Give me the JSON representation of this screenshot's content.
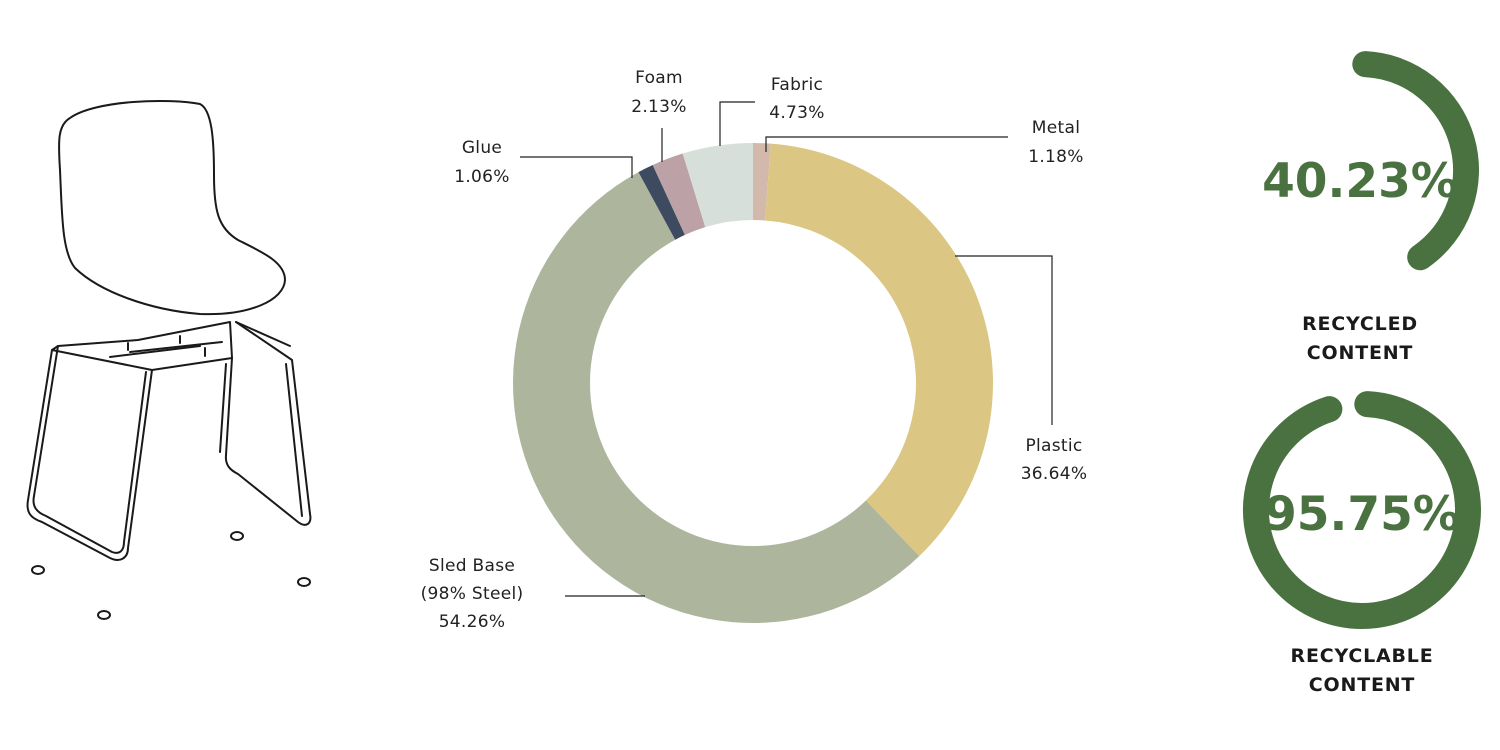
{
  "chart_data": {
    "type": "pie",
    "donut": true,
    "slices": [
      {
        "name": "Metal",
        "value_label": "1.18%",
        "value": 1.18,
        "color": "#d2b9ab"
      },
      {
        "name": "Plastic",
        "value_label": "36.64%",
        "value": 36.64,
        "color": "#dbc783"
      },
      {
        "name": "Sled Base",
        "name2": "(98% Steel)",
        "value_label": "54.26%",
        "value": 54.26,
        "color": "#adb59c"
      },
      {
        "name": "Glue",
        "value_label": "1.06%",
        "value": 1.06,
        "color": "#3d4a60"
      },
      {
        "name": "Foam",
        "value_label": "2.13%",
        "value": 2.13,
        "color": "#bca2a6"
      },
      {
        "name": "Fabric",
        "value_label": "4.73%",
        "value": 4.73,
        "color": "#d7dfdb"
      }
    ]
  },
  "gauges": [
    {
      "name": "recycled",
      "value": 40.23,
      "label": "40.23%",
      "caption_line1": "RECYCLED",
      "caption_line2": "CONTENT",
      "color": "#4a7140"
    },
    {
      "name": "recyclable",
      "value": 95.75,
      "label": "95.75%",
      "caption_line1": "RECYCLABLE",
      "caption_line2": "CONTENT",
      "color": "#4a7140"
    }
  ],
  "illustration": {
    "icon": "stacking-chair-exploded-line-drawing"
  }
}
